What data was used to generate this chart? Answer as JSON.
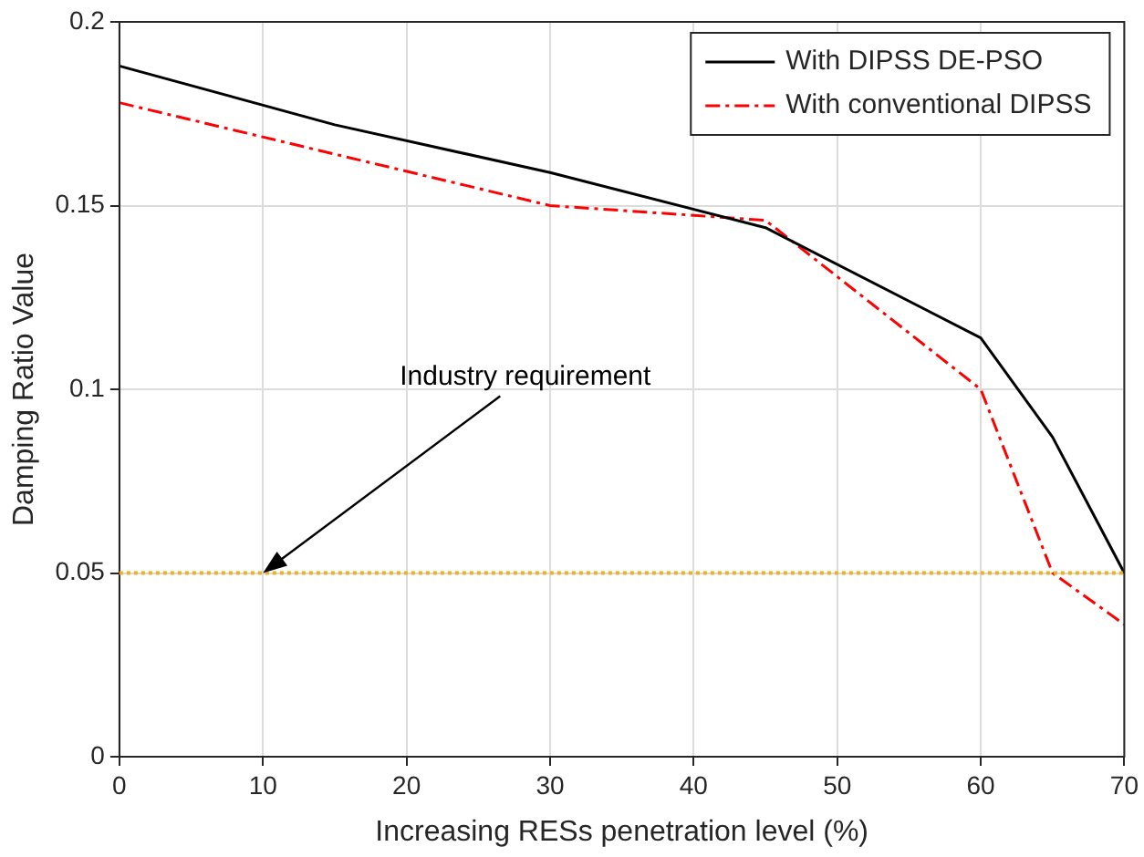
{
  "chart_data": {
    "type": "line",
    "xlabel": "Increasing RESs penetration level (%)",
    "ylabel": "Damping Ratio Value",
    "xlim": [
      0,
      70
    ],
    "xticks": [
      0,
      10,
      20,
      30,
      40,
      50,
      60,
      70
    ],
    "ylim": [
      0,
      0.2
    ],
    "yticks": [
      0,
      0.05,
      0.1,
      0.15,
      0.2
    ],
    "grid": true,
    "legend": "top right",
    "marker": "none",
    "series": [
      {
        "name": "With DIPSS DE-PSO",
        "color": "#000000",
        "line_style": "solid",
        "x": [
          0,
          15,
          30,
          45,
          60,
          65,
          70
        ],
        "values": [
          0.188,
          0.172,
          0.159,
          0.144,
          0.114,
          0.087,
          0.05
        ]
      },
      {
        "name": "With conventional DIPSS",
        "color": "#ff0000",
        "line_style": "dashed",
        "x": [
          0,
          30,
          45,
          60,
          65,
          70
        ],
        "values": [
          0.178,
          0.15,
          0.146,
          0.1,
          0.05,
          0.036
        ]
      }
    ],
    "ref_lines": [
      {
        "axis": "y",
        "value": 0.05,
        "color": "#edb120",
        "line_style": "dotted"
      }
    ],
    "annotations": [
      {
        "text": "Industry requirement",
        "x": 10,
        "y": 0.05
      }
    ]
  }
}
